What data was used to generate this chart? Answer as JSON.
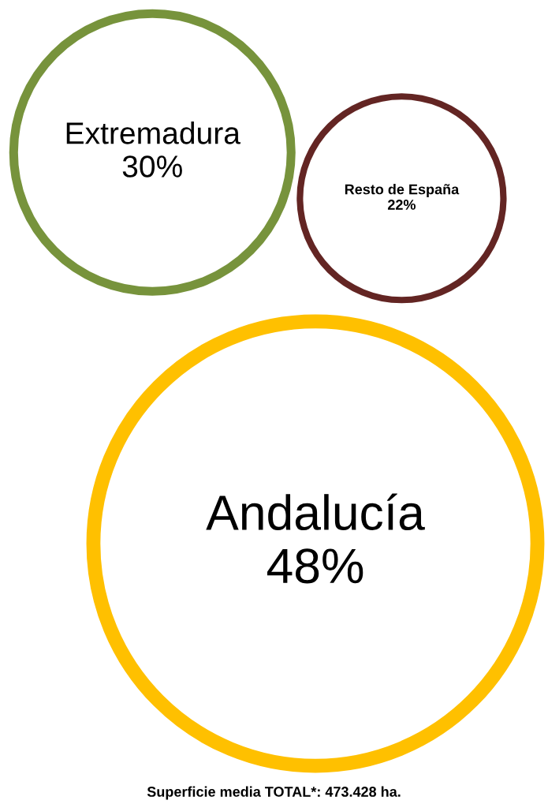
{
  "chart_data": {
    "type": "other",
    "categories": [
      "Extremadura",
      "Resto de España",
      "Andalucía"
    ],
    "values": [
      30,
      22,
      48
    ],
    "value_labels": [
      "30%",
      "22%",
      "48%"
    ],
    "colors": [
      "#77933c",
      "#632523",
      "#ffc000"
    ],
    "annotations": [
      "Superficie media TOTAL*: 473.428 ha."
    ]
  }
}
